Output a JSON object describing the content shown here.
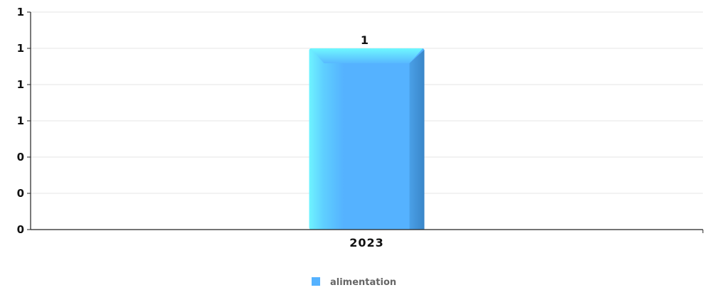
{
  "chart_data": {
    "type": "bar",
    "categories": [
      "2023"
    ],
    "series": [
      {
        "name": "alimentation",
        "values": [
          1
        ],
        "color": "#55b2ff"
      }
    ],
    "data_labels": [
      "1"
    ],
    "y_tick_labels": [
      "0",
      "0",
      "0",
      "1",
      "1",
      "1",
      "1"
    ],
    "ylim": [
      0,
      1.2
    ],
    "grid": true,
    "legend": "bottom-center"
  }
}
